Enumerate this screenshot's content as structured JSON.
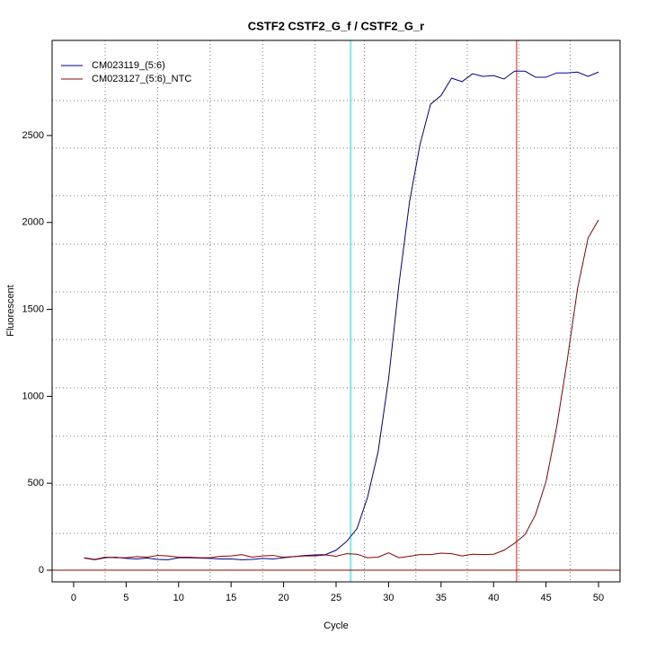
{
  "chart_data": {
    "type": "line",
    "title": "CSTF2  CSTF2_G_f / CSTF2_G_r",
    "x_label": "Cycle",
    "y_label": "Fluorescent",
    "x": [
      1,
      2,
      3,
      4,
      5,
      6,
      7,
      8,
      9,
      10,
      11,
      12,
      13,
      14,
      15,
      16,
      17,
      18,
      19,
      20,
      21,
      22,
      23,
      24,
      25,
      26,
      27,
      28,
      29,
      30,
      31,
      32,
      33,
      34,
      35,
      36,
      37,
      38,
      39,
      40,
      41,
      42,
      43,
      44,
      45,
      46,
      47,
      48,
      49,
      50
    ],
    "series": [
      {
        "name": "CM023119_(5:6)",
        "color": "#00008b",
        "values": [
          70,
          60,
          72,
          75,
          68,
          65,
          70,
          62,
          60,
          72,
          72,
          70,
          68,
          65,
          65,
          60,
          62,
          68,
          65,
          72,
          78,
          85,
          88,
          90,
          115,
          165,
          240,
          420,
          680,
          1100,
          1650,
          2120,
          2450,
          2680,
          2730,
          2830,
          2810,
          2855,
          2840,
          2845,
          2825,
          2870,
          2870,
          2835,
          2835,
          2860,
          2860,
          2865,
          2840,
          2865
        ]
      },
      {
        "name": "CM023127_(5:6)_NTC",
        "color": "#8b0000",
        "values": [
          72,
          62,
          75,
          72,
          72,
          78,
          75,
          85,
          82,
          75,
          75,
          72,
          72,
          80,
          82,
          90,
          75,
          82,
          85,
          75,
          78,
          82,
          82,
          88,
          80,
          95,
          92,
          72,
          75,
          100,
          72,
          80,
          90,
          90,
          98,
          95,
          82,
          92,
          90,
          92,
          115,
          155,
          205,
          320,
          510,
          820,
          1200,
          1620,
          1910,
          2015
        ]
      }
    ],
    "xlim": [
      -2.05,
      52.05
    ],
    "ylim": [
      -67,
      3047
    ],
    "xticks": [
      0,
      5,
      10,
      15,
      20,
      25,
      30,
      35,
      40,
      45,
      50
    ],
    "yticks": [
      0,
      500,
      1000,
      1500,
      2000,
      2500
    ],
    "xgrid": [
      3,
      8,
      13,
      18,
      23,
      27.7,
      32.6,
      37.5,
      42.4,
      47.3
    ],
    "ygrid": [
      212,
      491,
      770,
      1049,
      1327,
      1601,
      1875,
      2154,
      2428,
      2701
    ],
    "vlines": [
      {
        "value": 26.37,
        "color": "#00e5e5"
      },
      {
        "value": 42.2,
        "color": "#cc2222"
      }
    ],
    "hline": {
      "value": 0,
      "color": "#8b0000"
    },
    "legend": "top-left"
  }
}
